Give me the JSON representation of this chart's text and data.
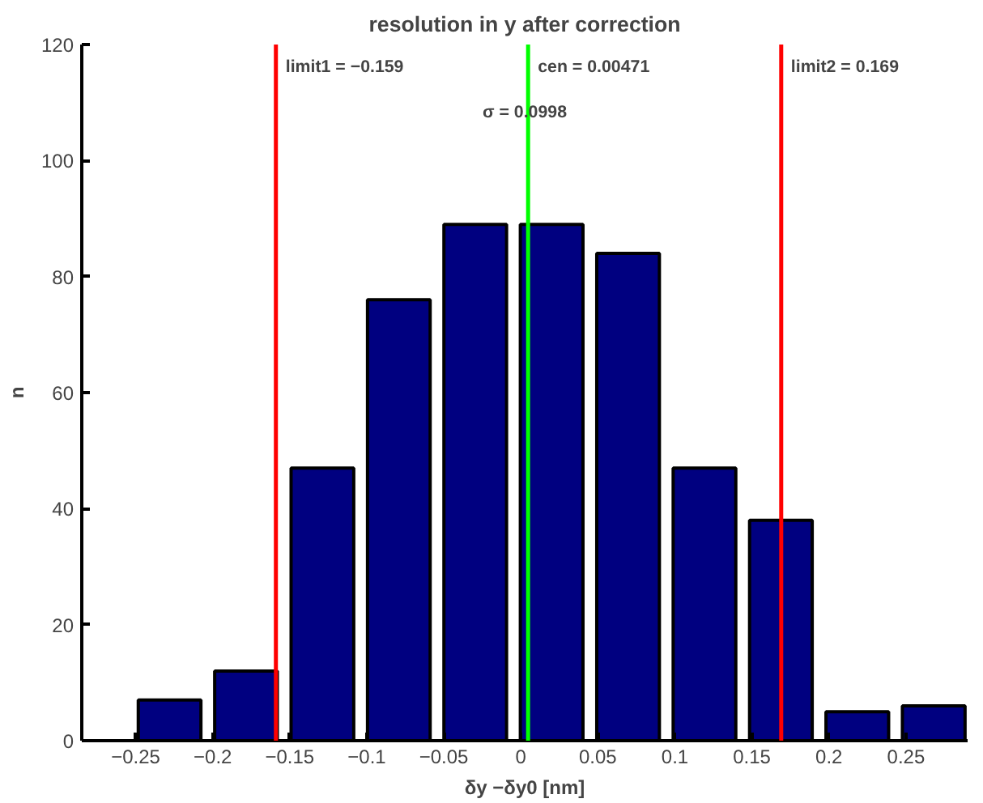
{
  "chart_data": {
    "type": "bar",
    "title": "resolution in y after correction",
    "xlabel": "δy −δy0 [nm]",
    "ylabel": "n",
    "x": [
      -0.228,
      -0.1784,
      -0.1288,
      -0.0792,
      -0.0296,
      0.02,
      0.0696,
      0.1192,
      0.1688,
      0.2184,
      0.268
    ],
    "values": [
      7,
      12,
      47,
      76,
      89,
      89,
      84,
      47,
      38,
      5,
      6
    ],
    "color": "#000080",
    "xlim": [
      -0.285,
      0.29
    ],
    "xticks": [
      {
        "value": -0.25,
        "label": "−0.25"
      },
      {
        "value": -0.2,
        "label": "−0.2"
      },
      {
        "value": -0.15,
        "label": "−0.15"
      },
      {
        "value": -0.1,
        "label": "−0.1"
      },
      {
        "value": -0.05,
        "label": "−0.05"
      },
      0,
      0.05,
      0.1,
      0.15,
      0.2,
      0.25
    ],
    "ylim": [
      0,
      120
    ],
    "yticks": [
      0,
      20,
      40,
      60,
      80,
      100,
      120
    ],
    "grid": false,
    "ref_lines": [
      {
        "axis": "x",
        "value": -0.159,
        "label": "limit1 = −0.159",
        "color": "#ff0000"
      },
      {
        "axis": "x",
        "value": 0.00471,
        "label": "cen = 0.00471",
        "color": "#00ff00"
      },
      {
        "axis": "x",
        "value": 0.169,
        "label": "limit2 = 0.169",
        "color": "#ff0000"
      }
    ],
    "annotations": [
      "σ = 0.0998"
    ]
  }
}
